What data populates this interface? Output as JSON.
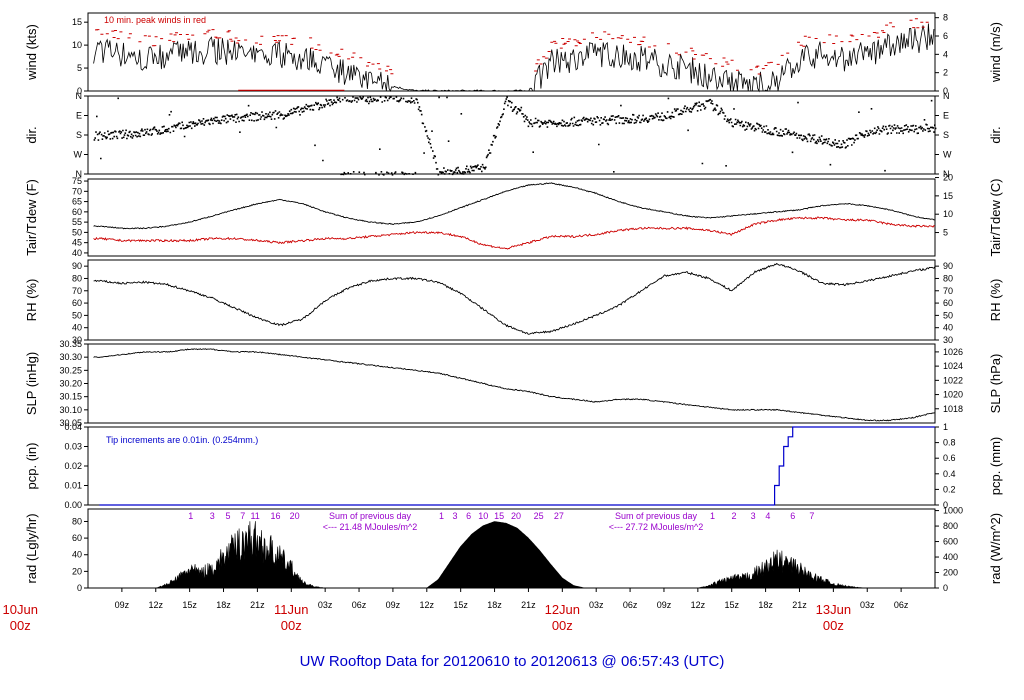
{
  "title": "UW Rooftop Data for 20120610  to  20120613 @ 06:57:43  (UTC)",
  "colors": {
    "obs": "#000000",
    "peak": "#cc0000",
    "dew": "#cc0000",
    "precip": "#0000cc",
    "rad_note": "#9900cc",
    "title": "#0000cc",
    "day": "#cc0000"
  },
  "x_axis": {
    "ticks": [
      "09z",
      "12z",
      "15z",
      "18z",
      "21z",
      "11Jun",
      "03z",
      "06z",
      "09z",
      "12z",
      "15z",
      "18z",
      "21z",
      "12Jun",
      "03z",
      "06z",
      "09z",
      "12z",
      "15z",
      "18z",
      "21z",
      "13Jun",
      "03z",
      "06z"
    ],
    "day_labels": [
      {
        "date": "10Jun",
        "hour": "00z",
        "pos_h": 0
      },
      {
        "date": "11Jun",
        "hour": "00z",
        "pos_h": 24
      },
      {
        "date": "12Jun",
        "hour": "00z",
        "pos_h": 48
      },
      {
        "date": "13Jun",
        "hour": "00z",
        "pos_h": 72
      }
    ]
  },
  "chart_data": [
    {
      "type": "line",
      "id": "wind",
      "ylabel_left": "wind (kts)",
      "ylabel_right": "wind (m/s)",
      "yticks_left": [
        "0",
        "5",
        "10",
        "15"
      ],
      "yticks_right": [
        "0",
        "2",
        "4",
        "6",
        "8"
      ],
      "ylim": [
        0,
        17
      ],
      "annotation": "10 min. peak winds in red",
      "x_hours": [
        7,
        9,
        11,
        13,
        15,
        17,
        19,
        21,
        23,
        25,
        27,
        29,
        31,
        33,
        35,
        37,
        39,
        41,
        43,
        45,
        47,
        49,
        51,
        53,
        55,
        57,
        59,
        61,
        63,
        65,
        67,
        69,
        71,
        73,
        75,
        77,
        79,
        81
      ],
      "series": [
        {
          "name": "wind",
          "values": [
            9,
            8,
            7,
            8,
            8,
            9,
            8,
            7,
            8,
            7,
            6,
            4,
            2,
            1,
            0,
            0,
            0,
            0,
            0,
            0,
            6,
            7,
            8,
            8,
            7,
            6,
            5,
            3,
            2,
            1,
            2,
            7,
            8,
            7,
            8,
            10,
            11,
            12
          ]
        }
      ]
    },
    {
      "type": "scatter",
      "id": "dir",
      "ylabel_left": "dir.",
      "ylabel_right": "dir.",
      "yticks_left": [
        "N",
        "E",
        "S",
        "W",
        "N"
      ],
      "yticks_right": [
        "N",
        "E",
        "S",
        "W",
        "N"
      ],
      "ylim": [
        0,
        360
      ],
      "x_hours": [
        7,
        9,
        11,
        13,
        15,
        17,
        19,
        21,
        23,
        25,
        27,
        29,
        31,
        33,
        35,
        37,
        39,
        41,
        43,
        45,
        47,
        49,
        51,
        53,
        55,
        57,
        59,
        61,
        63,
        65,
        67,
        69,
        71,
        73,
        75,
        77,
        79,
        81
      ],
      "series": [
        {
          "name": "direction",
          "values": [
            180,
            185,
            195,
            210,
            230,
            250,
            260,
            270,
            275,
            300,
            330,
            355,
            355,
            355,
            350,
            10,
            20,
            30,
            340,
            240,
            240,
            245,
            250,
            255,
            260,
            270,
            300,
            330,
            240,
            220,
            200,
            180,
            160,
            140,
            200,
            210,
            210,
            215
          ]
        }
      ]
    },
    {
      "type": "line",
      "id": "temp",
      "ylabel_left": "Tair/Tdew (F)",
      "ylabel_right": "Tair/Tdew (C)",
      "yticks_left": [
        "40",
        "45",
        "50",
        "55",
        "60",
        "65",
        "70",
        "75"
      ],
      "yticks_right": [
        "5",
        "10",
        "15",
        "20"
      ],
      "ylim": [
        38.5,
        76
      ],
      "x_hours": [
        7,
        9,
        11,
        13,
        15,
        17,
        19,
        21,
        23,
        25,
        27,
        29,
        31,
        33,
        35,
        37,
        39,
        41,
        43,
        45,
        47,
        49,
        51,
        53,
        55,
        57,
        59,
        61,
        63,
        65,
        67,
        69,
        71,
        73,
        75,
        77,
        79,
        81
      ],
      "series": [
        {
          "name": "Tair",
          "values": [
            53,
            52,
            52,
            53,
            55,
            58,
            61,
            64,
            66,
            64,
            60,
            57,
            55,
            54,
            55,
            58,
            62,
            66,
            70,
            73,
            74,
            72,
            69,
            65,
            62,
            60,
            58,
            57,
            58,
            59,
            60,
            61,
            63,
            64,
            63,
            61,
            58,
            56
          ]
        },
        {
          "name": "Tdew",
          "values": [
            47,
            46,
            46,
            46,
            46,
            47,
            47,
            46,
            45,
            46,
            47,
            47,
            48,
            49,
            50,
            50,
            48,
            44,
            42,
            45,
            48,
            48,
            49,
            51,
            52,
            52,
            52,
            51,
            49,
            54,
            56,
            57,
            57,
            56,
            56,
            54,
            53,
            53
          ]
        }
      ]
    },
    {
      "type": "line",
      "id": "rh",
      "ylabel_left": "RH (%)",
      "ylabel_right": "RH (%)",
      "yticks_left": [
        "30",
        "40",
        "50",
        "60",
        "70",
        "80",
        "90"
      ],
      "yticks_right": [
        "30",
        "40",
        "50",
        "60",
        "70",
        "80",
        "90"
      ],
      "ylim": [
        30,
        95
      ],
      "x_hours": [
        7,
        9,
        11,
        13,
        15,
        17,
        19,
        21,
        23,
        25,
        27,
        29,
        31,
        33,
        35,
        37,
        39,
        41,
        43,
        45,
        47,
        49,
        51,
        53,
        55,
        57,
        59,
        61,
        63,
        65,
        67,
        69,
        71,
        73,
        75,
        77,
        79,
        81
      ],
      "series": [
        {
          "name": "RH",
          "values": [
            78,
            76,
            77,
            75,
            70,
            64,
            56,
            48,
            42,
            47,
            62,
            72,
            78,
            80,
            80,
            77,
            68,
            55,
            42,
            35,
            37,
            43,
            50,
            58,
            70,
            82,
            85,
            80,
            70,
            85,
            92,
            86,
            76,
            75,
            78,
            82,
            86,
            89
          ]
        }
      ]
    },
    {
      "type": "line",
      "id": "slp",
      "ylabel_left": "SLP (inHg)",
      "ylabel_right": "SLP (hPa)",
      "yticks_left": [
        "30.05",
        "30.10",
        "30.15",
        "30.20",
        "30.25",
        "30.30",
        "30.35"
      ],
      "yticks_right": [
        "1018",
        "1020",
        "1022",
        "1024",
        "1026"
      ],
      "ylim": [
        30.05,
        30.35
      ],
      "x_hours": [
        7,
        9,
        11,
        13,
        15,
        17,
        19,
        21,
        23,
        25,
        27,
        29,
        31,
        33,
        35,
        37,
        39,
        41,
        43,
        45,
        47,
        49,
        51,
        53,
        55,
        57,
        59,
        61,
        63,
        65,
        67,
        69,
        71,
        73,
        75,
        77,
        79,
        81
      ],
      "series": [
        {
          "name": "SLP",
          "values": [
            30.3,
            30.31,
            30.32,
            30.32,
            30.33,
            30.33,
            30.32,
            30.32,
            30.31,
            30.3,
            30.29,
            30.28,
            30.27,
            30.26,
            30.25,
            30.24,
            30.22,
            30.2,
            30.18,
            30.17,
            30.15,
            30.14,
            30.13,
            30.14,
            30.14,
            30.13,
            30.12,
            30.11,
            30.1,
            30.1,
            30.1,
            30.09,
            30.08,
            30.07,
            30.06,
            30.06,
            30.07,
            30.09
          ]
        }
      ]
    },
    {
      "type": "line",
      "id": "pcp",
      "ylabel_left": "pcp. (in)",
      "ylabel_right": "pcp. (mm)",
      "yticks_left": [
        "0.00",
        "0.01",
        "0.02",
        "0.03",
        "0.04"
      ],
      "yticks_right": [
        "0",
        "0.2",
        "0.4",
        "0.6",
        "0.8",
        "1"
      ],
      "ylim": [
        0,
        0.04
      ],
      "annotation": "Tip increments are 0.01in. (0.254mm.)",
      "x_hours": [
        7,
        66,
        66.8,
        67.2,
        67.6,
        68,
        68.4,
        81
      ],
      "series": [
        {
          "name": "cumulative precip",
          "values": [
            0,
            0,
            0.01,
            0.02,
            0.03,
            0.035,
            0.04,
            0.04
          ]
        }
      ]
    },
    {
      "type": "area",
      "id": "rad",
      "ylabel_left": "rad (Lgly/hr)",
      "ylabel_right": "rad (W/m^2)",
      "yticks_left": [
        "0",
        "20",
        "40",
        "60",
        "80"
      ],
      "yticks_right": [
        "0",
        "200",
        "400",
        "600",
        "800",
        "1000"
      ],
      "ylim": [
        0,
        95
      ],
      "daily_sum_labels": [
        "Sum of previous day",
        "<--- 21.48 MJoules/m^2",
        "Sum of previous day",
        "<--- 27.72 MJoules/m^2"
      ],
      "cloud_marks": [
        {
          "hour": 15.1,
          "label": "1"
        },
        {
          "hour": 17.0,
          "label": "3"
        },
        {
          "hour": 18.4,
          "label": "5"
        },
        {
          "hour": 19.7,
          "label": "7"
        },
        {
          "hour": 20.8,
          "label": "11"
        },
        {
          "hour": 22.6,
          "label": "16"
        },
        {
          "hour": 24.3,
          "label": "20"
        },
        {
          "hour": 37.3,
          "label": "1"
        },
        {
          "hour": 38.5,
          "label": "3"
        },
        {
          "hour": 39.7,
          "label": "6"
        },
        {
          "hour": 41.0,
          "label": "10"
        },
        {
          "hour": 42.4,
          "label": "15"
        },
        {
          "hour": 43.9,
          "label": "20"
        },
        {
          "hour": 45.9,
          "label": "25"
        },
        {
          "hour": 47.7,
          "label": "27"
        },
        {
          "hour": 61.3,
          "label": "1"
        },
        {
          "hour": 63.2,
          "label": "2"
        },
        {
          "hour": 64.9,
          "label": "3"
        },
        {
          "hour": 66.2,
          "label": "4"
        },
        {
          "hour": 68.4,
          "label": "6"
        },
        {
          "hour": 70.1,
          "label": "7"
        }
      ],
      "x_hours": [
        12,
        13,
        14,
        15,
        16,
        17,
        18,
        19,
        20,
        21,
        22,
        23,
        24,
        25,
        26,
        27,
        36,
        37,
        38,
        39,
        40,
        41,
        42,
        43,
        44,
        45,
        46,
        47,
        48,
        49,
        50,
        51,
        60,
        61,
        62,
        63,
        64,
        65,
        66,
        67,
        68,
        69,
        70,
        71,
        72,
        73,
        74,
        75
      ],
      "series": [
        {
          "name": "radiation",
          "values": [
            0,
            5,
            15,
            28,
            22,
            30,
            45,
            60,
            75,
            70,
            58,
            45,
            30,
            8,
            2,
            0,
            0,
            10,
            30,
            50,
            65,
            75,
            80,
            78,
            72,
            60,
            45,
            28,
            12,
            3,
            0,
            0,
            0,
            3,
            10,
            14,
            15,
            22,
            30,
            42,
            36,
            28,
            18,
            12,
            6,
            3,
            1,
            0
          ]
        }
      ]
    }
  ]
}
